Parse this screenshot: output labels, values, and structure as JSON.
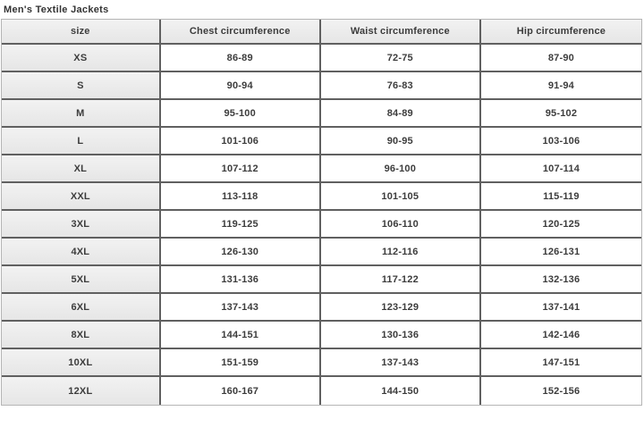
{
  "title": "Men's Textile Jackets",
  "table": {
    "columns": [
      {
        "key": "size",
        "label": "size"
      },
      {
        "key": "chest",
        "label": "Chest circumference"
      },
      {
        "key": "waist",
        "label": "Waist circumference"
      },
      {
        "key": "hip",
        "label": "Hip circumference"
      }
    ],
    "rows": [
      {
        "size": "XS",
        "chest": "86-89",
        "waist": "72-75",
        "hip": "87-90"
      },
      {
        "size": "S",
        "chest": "90-94",
        "waist": "76-83",
        "hip": "91-94"
      },
      {
        "size": "M",
        "chest": "95-100",
        "waist": "84-89",
        "hip": "95-102"
      },
      {
        "size": "L",
        "chest": "101-106",
        "waist": "90-95",
        "hip": "103-106"
      },
      {
        "size": "XL",
        "chest": "107-112",
        "waist": "96-100",
        "hip": "107-114"
      },
      {
        "size": "XXL",
        "chest": "113-118",
        "waist": "101-105",
        "hip": "115-119"
      },
      {
        "size": "3XL",
        "chest": "119-125",
        "waist": "106-110",
        "hip": "120-125"
      },
      {
        "size": "4XL",
        "chest": "126-130",
        "waist": "112-116",
        "hip": "126-131"
      },
      {
        "size": "5XL",
        "chest": "131-136",
        "waist": "117-122",
        "hip": "132-136"
      },
      {
        "size": "6XL",
        "chest": "137-143",
        "waist": "123-129",
        "hip": "137-141"
      },
      {
        "size": "8XL",
        "chest": "144-151",
        "waist": "130-136",
        "hip": "142-146"
      },
      {
        "size": "10XL",
        "chest": "151-159",
        "waist": "137-143",
        "hip": "147-151"
      },
      {
        "size": "12XL",
        "chest": "160-167",
        "waist": "144-150",
        "hip": "152-156"
      }
    ]
  },
  "colors": {
    "header_bg": "#ebebeb",
    "size_column_bg": "#ebebeb",
    "data_cell_bg": "#ffffff",
    "inner_border": "#606060",
    "outer_border": "#b5b5b5",
    "text": "#3c3c3c",
    "title_text": "#333333"
  }
}
